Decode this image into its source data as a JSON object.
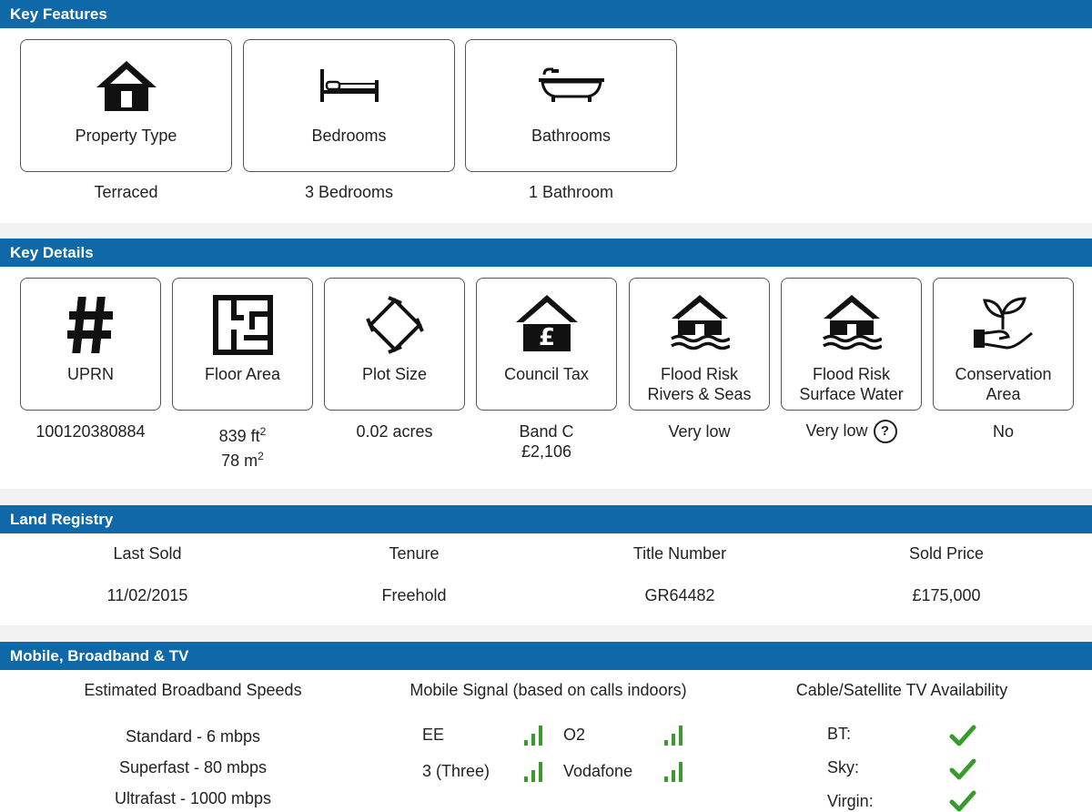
{
  "key_features": {
    "title": "Key Features",
    "items": [
      {
        "label": "Property Type",
        "value": "Terraced",
        "icon": "house-icon"
      },
      {
        "label": "Bedrooms",
        "value": "3 Bedrooms",
        "icon": "bed-icon"
      },
      {
        "label": "Bathrooms",
        "value": "1 Bathroom",
        "icon": "bathtub-icon"
      }
    ]
  },
  "key_details": {
    "title": "Key Details",
    "uprn": {
      "label": "UPRN",
      "value": "100120380884"
    },
    "floor_area": {
      "label": "Floor Area",
      "value_ft": "839 ft",
      "value_m": "78 m",
      "sup": "2"
    },
    "plot_size": {
      "label": "Plot Size",
      "value": "0.02 acres"
    },
    "council_tax": {
      "label": "Council Tax",
      "band": "Band C",
      "amount": "£2,106",
      "symbol": "£"
    },
    "flood_rivers": {
      "label1": "Flood Risk",
      "label2": "Rivers & Seas",
      "value": "Very low"
    },
    "flood_surface": {
      "label1": "Flood Risk",
      "label2": "Surface Water",
      "value": "Very low",
      "help": "?"
    },
    "conservation": {
      "label1": "Conservation",
      "label2": "Area",
      "value": "No"
    }
  },
  "land_registry": {
    "title": "Land Registry",
    "columns": [
      {
        "header": "Last Sold",
        "value": "11/02/2015"
      },
      {
        "header": "Tenure",
        "value": "Freehold"
      },
      {
        "header": "Title Number",
        "value": "GR64482"
      },
      {
        "header": "Sold Price",
        "value": "£175,000"
      }
    ]
  },
  "mobile_broadband": {
    "title": "Mobile, Broadband & TV",
    "broadband": {
      "heading": "Estimated Broadband Speeds",
      "speeds": [
        "Standard - 6 mbps",
        "Superfast - 80 mbps",
        "Ultrafast - 1000 mbps"
      ]
    },
    "mobile": {
      "heading": "Mobile Signal (based on calls indoors)",
      "networks": [
        "EE",
        "O2",
        "3 (Three)",
        "Vodafone"
      ]
    },
    "tv": {
      "heading": "Cable/Satellite TV Availability",
      "providers": [
        "BT:",
        "Sky:",
        "Virgin:"
      ]
    }
  },
  "colors": {
    "header_blue": "#0f69a8",
    "signal_green": "#3a9a2e"
  }
}
